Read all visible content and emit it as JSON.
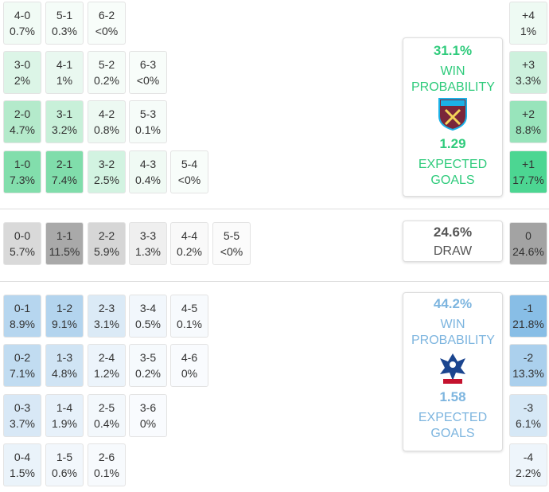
{
  "home": {
    "rows": [
      [
        {
          "score": "4-0",
          "prob": "0.7%",
          "color": "#f1fbf5"
        },
        {
          "score": "5-1",
          "prob": "0.3%",
          "color": "#f5fcf8"
        },
        {
          "score": "6-2",
          "prob": "<0%",
          "color": "#f8fdfa"
        }
      ],
      [
        {
          "score": "3-0",
          "prob": "2%",
          "color": "#dcf5e7"
        },
        {
          "score": "4-1",
          "prob": "1%",
          "color": "#e9f8f0"
        },
        {
          "score": "5-2",
          "prob": "0.2%",
          "color": "#f5fcf8"
        },
        {
          "score": "6-3",
          "prob": "<0%",
          "color": "#f8fdfa"
        }
      ],
      [
        {
          "score": "2-0",
          "prob": "4.7%",
          "color": "#b4eacb"
        },
        {
          "score": "3-1",
          "prob": "3.2%",
          "color": "#c8f0d9"
        },
        {
          "score": "4-2",
          "prob": "0.8%",
          "color": "#edf9f2"
        },
        {
          "score": "5-3",
          "prob": "0.1%",
          "color": "#f6fcf9"
        }
      ],
      [
        {
          "score": "1-0",
          "prob": "7.3%",
          "color": "#82deac"
        },
        {
          "score": "2-1",
          "prob": "7.4%",
          "color": "#80ddab"
        },
        {
          "score": "3-2",
          "prob": "2.5%",
          "color": "#d2f3e1"
        },
        {
          "score": "4-3",
          "prob": "0.4%",
          "color": "#f0faf4"
        },
        {
          "score": "5-4",
          "prob": "<0%",
          "color": "#f8fdfa"
        }
      ]
    ],
    "margins": [
      {
        "label": "+4",
        "prob": "1%",
        "color": "#eefaf3"
      },
      {
        "label": "+3",
        "prob": "3.3%",
        "color": "#cdf1dd"
      },
      {
        "label": "+2",
        "prob": "8.8%",
        "color": "#98e4bb"
      },
      {
        "label": "+1",
        "prob": "17.7%",
        "color": "#4cd692"
      }
    ],
    "summary": {
      "win_pct": "31.1%",
      "win_label": "WIN PROBABILITY",
      "xg": "1.29",
      "xg_label": "EXPECTED GOALS",
      "color": "#2fcb7c"
    }
  },
  "draw": {
    "rows": [
      [
        {
          "score": "0-0",
          "prob": "5.7%",
          "color": "#d9d9d9"
        },
        {
          "score": "1-1",
          "prob": "11.5%",
          "color": "#a9a9a9"
        },
        {
          "score": "2-2",
          "prob": "5.9%",
          "color": "#d6d6d6"
        },
        {
          "score": "3-3",
          "prob": "1.3%",
          "color": "#efefef"
        },
        {
          "score": "4-4",
          "prob": "0.2%",
          "color": "#f9f9f9"
        },
        {
          "score": "5-5",
          "prob": "<0%",
          "color": "#fbfbfb"
        }
      ]
    ],
    "margins": [
      {
        "label": "0",
        "prob": "24.6%",
        "color": "#a3a3a3"
      }
    ],
    "summary": {
      "win_pct": "24.6%",
      "win_label": "DRAW",
      "color": "#555555"
    }
  },
  "away": {
    "rows": [
      [
        {
          "score": "0-1",
          "prob": "8.9%",
          "color": "#b6d6ef"
        },
        {
          "score": "1-2",
          "prob": "9.1%",
          "color": "#b3d4ee"
        },
        {
          "score": "2-3",
          "prob": "3.1%",
          "color": "#dbeaf6"
        },
        {
          "score": "3-4",
          "prob": "0.5%",
          "color": "#f2f7fc"
        },
        {
          "score": "4-5",
          "prob": "0.1%",
          "color": "#f7fafd"
        }
      ],
      [
        {
          "score": "0-2",
          "prob": "7.1%",
          "color": "#c1dcf1"
        },
        {
          "score": "1-3",
          "prob": "4.8%",
          "color": "#d0e4f4"
        },
        {
          "score": "2-4",
          "prob": "1.2%",
          "color": "#ecf4fb"
        },
        {
          "score": "3-5",
          "prob": "0.2%",
          "color": "#f6fafd"
        },
        {
          "score": "4-6",
          "prob": "0%",
          "color": "#f9fbfe"
        }
      ],
      [
        {
          "score": "0-3",
          "prob": "3.7%",
          "color": "#d8e8f6"
        },
        {
          "score": "1-4",
          "prob": "1.9%",
          "color": "#e7f1fa"
        },
        {
          "score": "2-5",
          "prob": "0.4%",
          "color": "#f3f8fc"
        },
        {
          "score": "3-6",
          "prob": "0%",
          "color": "#f9fbfe"
        }
      ],
      [
        {
          "score": "0-4",
          "prob": "1.5%",
          "color": "#eaf3fa"
        },
        {
          "score": "1-5",
          "prob": "0.6%",
          "color": "#f2f7fc"
        },
        {
          "score": "2-6",
          "prob": "0.1%",
          "color": "#f7fafd"
        }
      ]
    ],
    "margins": [
      {
        "label": "-1",
        "prob": "21.8%",
        "color": "#88bee6"
      },
      {
        "label": "-2",
        "prob": "13.3%",
        "color": "#abd0ed"
      },
      {
        "label": "-3",
        "prob": "6.1%",
        "color": "#d6e8f6"
      },
      {
        "label": "-4",
        "prob": "2.2%",
        "color": "#eef5fb"
      }
    ],
    "summary": {
      "win_pct": "44.2%",
      "win_label": "WIN PROBABILITY",
      "xg": "1.58",
      "xg_label": "EXPECTED GOALS",
      "color": "#7db5df"
    }
  }
}
